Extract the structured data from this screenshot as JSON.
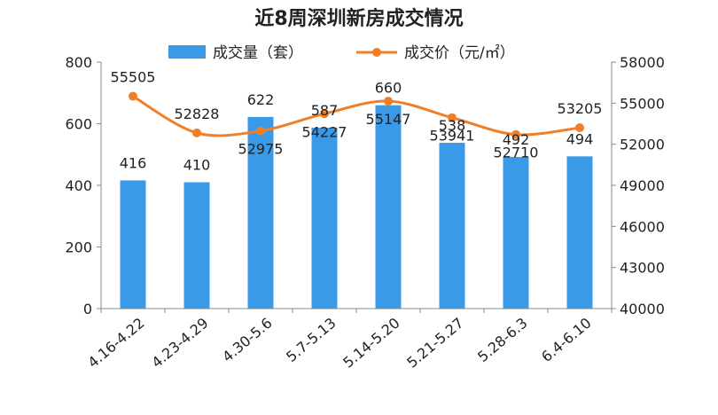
{
  "chart_data": {
    "type": "bar",
    "title": "近8周深圳新房成交情况",
    "categories": [
      "4.16-4.22",
      "4.23-4.29",
      "4.30-5.6",
      "5.7-5.13",
      "5.14-5.20",
      "5.21-5.27",
      "5.28-6.3",
      "6.4-6.10"
    ],
    "series": [
      {
        "name": "成交量（套）",
        "type": "bar",
        "axis": "left",
        "color": "#3b9ae8",
        "values": [
          416,
          410,
          622,
          587,
          660,
          538,
          492,
          494
        ],
        "labels": [
          "416",
          "410",
          "622",
          "587",
          "660",
          "538",
          "492",
          "494"
        ]
      },
      {
        "name": "成交价（元/㎡）",
        "type": "line",
        "axis": "right",
        "color": "#f07f2a",
        "values": [
          55505,
          52828,
          52975,
          54227,
          55147,
          53941,
          52710,
          53205
        ],
        "labels": [
          "55505",
          "52828",
          "52975",
          "54227",
          "55147",
          "53941",
          "52710",
          "53205"
        ]
      }
    ],
    "y_left": {
      "ylim": [
        0,
        800
      ],
      "ticks": [
        "0",
        "200",
        "400",
        "600",
        "800"
      ]
    },
    "y_right": {
      "ylim": [
        40000,
        58000
      ],
      "ticks": [
        "40000",
        "43000",
        "46000",
        "49000",
        "52000",
        "55000",
        "58000"
      ]
    },
    "legend_position": "top-center",
    "grid": false
  }
}
